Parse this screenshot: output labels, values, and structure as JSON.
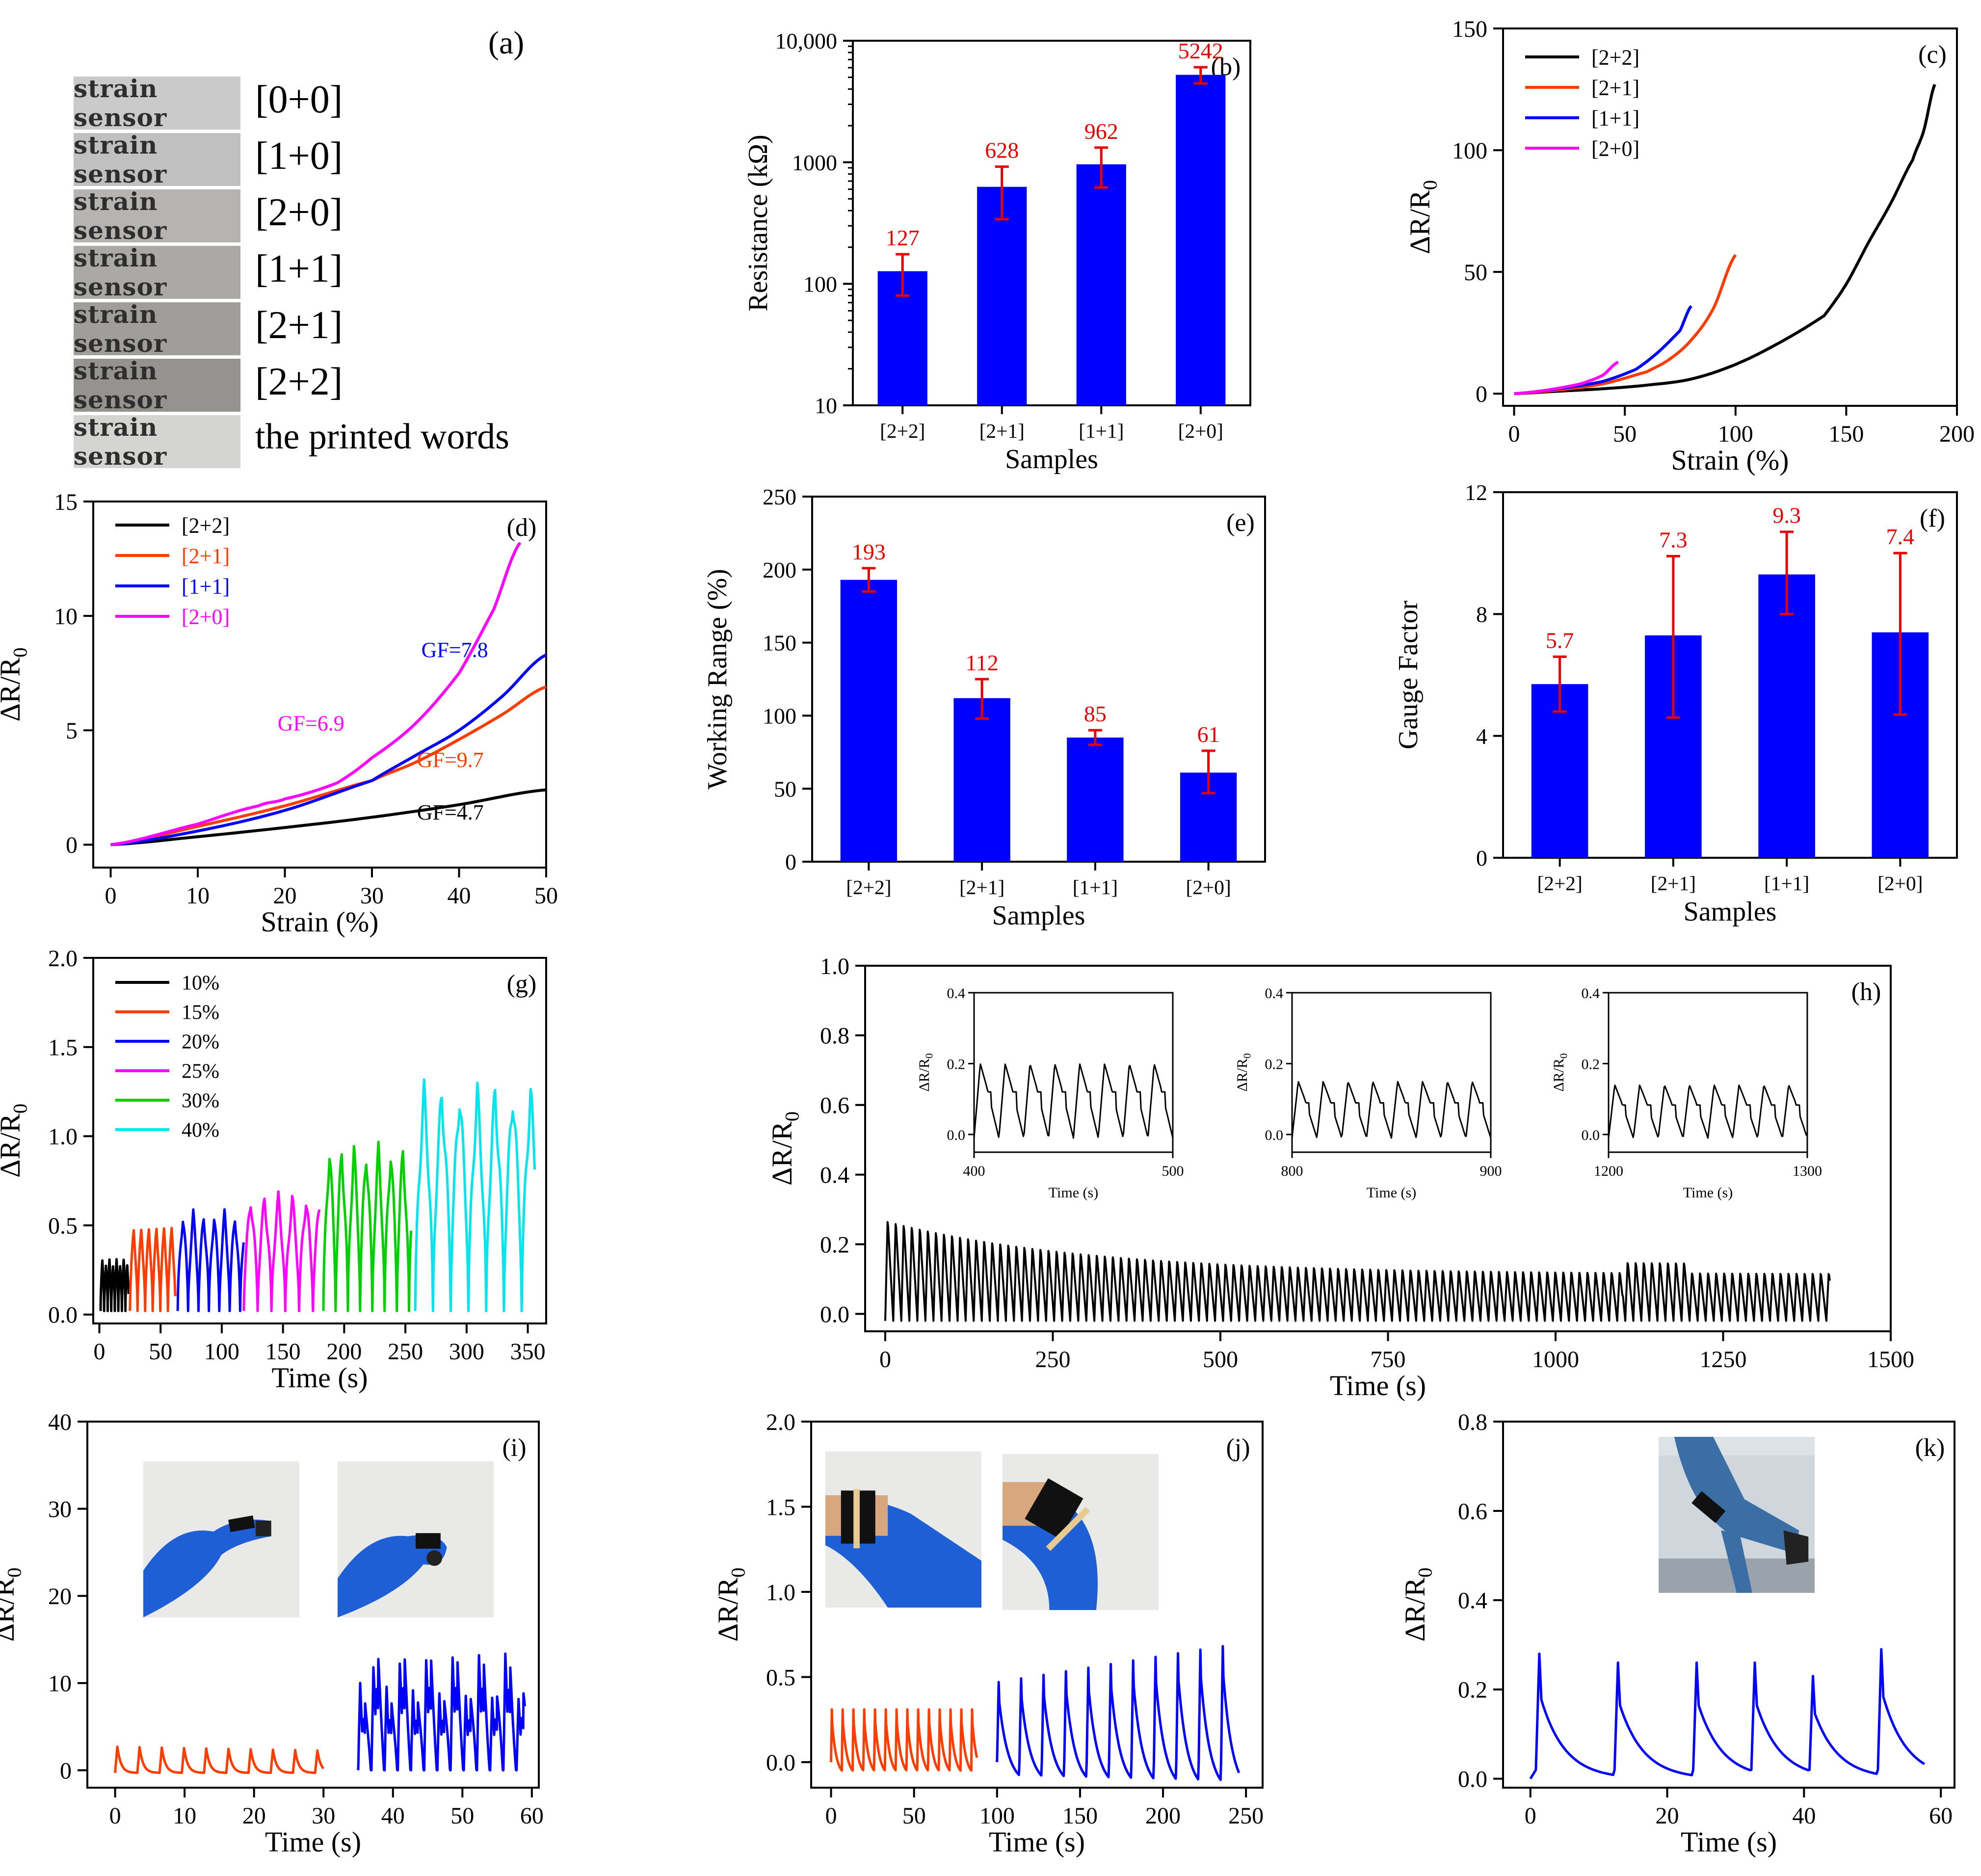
{
  "panel_a": {
    "letter": "(a)",
    "strip_text": "strain sensor",
    "labels": [
      "[0+0]",
      "[1+0]",
      "[2+0]",
      "[1+1]",
      "[2+1]",
      "[2+2]",
      "the printed words"
    ]
  },
  "photo_descriptions": {
    "i": [
      "gloved finger straight with sensor",
      "gloved finger bent with sensor"
    ],
    "j": [
      "gloved wrist straight with sensor",
      "gloved wrist bent with sensor"
    ],
    "k": [
      "leg with knee bent wearing sensor"
    ]
  },
  "colors": {
    "blue": "#0000ff",
    "red": "#e60000",
    "black": "#000000",
    "orange": "#ff3c00",
    "magenta": "#ff00ff",
    "green": "#00d000",
    "cyan": "#00e5ee"
  },
  "chart_data": [
    {
      "id": "b",
      "type": "bar",
      "letter": "(b)",
      "ylabel": "Resistance (kΩ)",
      "xlabel": "Samples",
      "yscale": "log",
      "ylim": [
        10,
        10000
      ],
      "yticks": [
        10,
        100,
        1000,
        10000
      ],
      "ytick_labels": [
        "10",
        "100",
        "1000",
        "10,000"
      ],
      "categories": [
        "[2+2]",
        "[2+1]",
        "[1+1]",
        "[2+0]"
      ],
      "values": [
        127,
        628,
        962,
        5242
      ],
      "err_low": [
        80,
        340,
        620,
        4450
      ],
      "err_high": [
        175,
        920,
        1320,
        6050
      ],
      "value_labels": [
        "127",
        "628",
        "962",
        "5242"
      ]
    },
    {
      "id": "c",
      "type": "line",
      "letter": "(c)",
      "ylabel": "ΔR/R0",
      "xlabel": "Strain (%)",
      "xlim": [
        -5,
        200
      ],
      "ylim": [
        -5,
        150
      ],
      "xticks": [
        0,
        50,
        100,
        150,
        200
      ],
      "yticks": [
        0,
        50,
        100,
        150
      ],
      "legend_position": "top-left",
      "series": [
        {
          "name": "[2+2]",
          "color": "#000000",
          "x": [
            0,
            20,
            40,
            60,
            80,
            100,
            120,
            140,
            150,
            160,
            170,
            180,
            185,
            190
          ],
          "y": [
            0,
            1,
            2,
            3.5,
            6,
            12,
            21,
            32,
            45,
            62,
            78,
            96,
            108,
            127
          ]
        },
        {
          "name": "[2+1]",
          "color": "#ff3c00",
          "x": [
            0,
            20,
            40,
            60,
            70,
            80,
            90,
            100
          ],
          "y": [
            0,
            1.5,
            4,
            9,
            14,
            22,
            35,
            57
          ]
        },
        {
          "name": "[1+1]",
          "color": "#0000ff",
          "x": [
            0,
            20,
            40,
            55,
            65,
            75,
            80
          ],
          "y": [
            0,
            2,
            5,
            10,
            17,
            26,
            36
          ]
        },
        {
          "name": "[2+0]",
          "color": "#ff00ff",
          "x": [
            0,
            15,
            30,
            40,
            47
          ],
          "y": [
            0,
            1.5,
            4,
            7.5,
            13
          ]
        }
      ]
    },
    {
      "id": "d",
      "type": "line",
      "letter": "(d)",
      "ylabel": "ΔR/R0",
      "xlabel": "Strain (%)",
      "xlim": [
        -2,
        50
      ],
      "ylim": [
        -1,
        15
      ],
      "xticks": [
        0,
        10,
        20,
        30,
        40,
        50
      ],
      "yticks": [
        0,
        5,
        10,
        15
      ],
      "legend_position": "top-left",
      "series": [
        {
          "name": "[2+2]",
          "color": "#000000",
          "x": [
            0,
            10,
            20,
            30,
            40,
            50
          ],
          "y": [
            0,
            0.35,
            0.75,
            1.2,
            1.75,
            2.4
          ]
        },
        {
          "name": "[2+1]",
          "color": "#ff3c00",
          "x": [
            0,
            10,
            20,
            30,
            35,
            40,
            45,
            50
          ],
          "y": [
            0,
            0.8,
            1.7,
            2.8,
            3.6,
            4.6,
            5.7,
            6.9
          ]
        },
        {
          "name": "[1+1]",
          "color": "#0000ff",
          "x": [
            0,
            10,
            20,
            30,
            35,
            40,
            45,
            50
          ],
          "y": [
            0,
            0.6,
            1.5,
            2.8,
            3.9,
            5.0,
            6.5,
            8.3
          ]
        },
        {
          "name": "[2+0]",
          "color": "#ff00ff",
          "x": [
            0,
            10,
            17,
            20,
            26,
            30,
            35,
            40,
            44,
            47
          ],
          "y": [
            0,
            0.9,
            1.7,
            2.0,
            2.7,
            3.8,
            5.3,
            7.5,
            10.3,
            13.2
          ]
        }
      ],
      "annotations": [
        {
          "text": "GF=7.8",
          "x": 39.5,
          "y": 8.2,
          "color": "#0000ff"
        },
        {
          "text": "GF=6.9",
          "x": 23,
          "y": 5.0,
          "color": "#ff00ff"
        },
        {
          "text": "GF=9.7",
          "x": 39,
          "y": 3.4,
          "color": "#ff3c00"
        },
        {
          "text": "GF=4.7",
          "x": 39,
          "y": 1.1,
          "color": "#000000"
        }
      ]
    },
    {
      "id": "e",
      "type": "bar",
      "letter": "(e)",
      "ylabel": "Working Range (%)",
      "xlabel": "Samples",
      "ylim": [
        0,
        250
      ],
      "yticks": [
        0,
        50,
        100,
        150,
        200,
        250
      ],
      "categories": [
        "[2+2]",
        "[2+1]",
        "[1+1]",
        "[2+0]"
      ],
      "values": [
        193,
        112,
        85,
        61
      ],
      "err_low": [
        185,
        98,
        80,
        47
      ],
      "err_high": [
        201,
        125,
        90,
        76
      ],
      "value_labels": [
        "193",
        "112",
        "85",
        "61"
      ]
    },
    {
      "id": "f",
      "type": "bar",
      "letter": "(f)",
      "ylabel": "Gauge Factor",
      "xlabel": "Samples",
      "ylim": [
        0,
        12
      ],
      "yticks": [
        0,
        4,
        8,
        12
      ],
      "categories": [
        "[2+2]",
        "[2+1]",
        "[1+1]",
        "[2+0]"
      ],
      "values": [
        5.7,
        7.3,
        9.3,
        7.4
      ],
      "err_low": [
        4.8,
        4.6,
        8.0,
        4.7
      ],
      "err_high": [
        6.6,
        9.9,
        10.7,
        10.0
      ],
      "value_labels": [
        "5.7",
        "7.3",
        "9.3",
        "7.4"
      ]
    },
    {
      "id": "g",
      "type": "line",
      "letter": "(g)",
      "ylabel": "ΔR/R0",
      "xlabel": "Time (s)",
      "xlim": [
        -5,
        365
      ],
      "ylim": [
        -0.05,
        2.0
      ],
      "xticks": [
        0,
        50,
        100,
        150,
        200,
        250,
        300,
        350
      ],
      "yticks": [
        0.0,
        0.5,
        1.0,
        1.5,
        2.0
      ],
      "ytick_labels": [
        "0.0",
        "0.5",
        "1.0",
        "1.5",
        "2.0"
      ],
      "legend_position": "top-left",
      "series": [
        {
          "name": "10%",
          "color": "#000000",
          "t_start": 1,
          "t_end": 24,
          "period": 2.9,
          "amp": 0.29
        },
        {
          "name": "15%",
          "color": "#ff3c00",
          "t_start": 25,
          "t_end": 62,
          "period": 6.2,
          "amp": 0.48
        },
        {
          "name": "20%",
          "color": "#0000ff",
          "t_start": 64,
          "t_end": 118,
          "period": 8.5,
          "amp": 0.57
        },
        {
          "name": "25%",
          "color": "#ff00ff",
          "t_start": 118,
          "t_end": 180,
          "period": 11.3,
          "amp": 0.67
        },
        {
          "name": "30%",
          "color": "#00d000",
          "t_start": 183,
          "t_end": 255,
          "period": 10.0,
          "amp": 0.95
        },
        {
          "name": "40%",
          "color": "#00e5ee",
          "t_start": 258,
          "t_end": 356,
          "period": 14.5,
          "amp": 1.3
        }
      ]
    },
    {
      "id": "h",
      "type": "line",
      "letter": "(h)",
      "ylabel": "ΔR/R0",
      "xlabel": "Time (s)",
      "xlim": [
        -30,
        1500
      ],
      "ylim": [
        -0.05,
        1.0
      ],
      "xticks": [
        0,
        250,
        500,
        750,
        1000,
        1250,
        1500
      ],
      "yticks": [
        0.0,
        0.2,
        0.4,
        0.6,
        0.8,
        1.0
      ],
      "ytick_labels": [
        "0.0",
        "0.2",
        "0.4",
        "0.6",
        "0.8",
        "1.0"
      ],
      "cycle_period": 12,
      "t_end": 1410,
      "insets": [
        {
          "xlim": [
            400,
            500
          ],
          "ylim": [
            -0.05,
            0.4
          ],
          "xticks": [
            400,
            500
          ],
          "yticks": [
            0.0,
            0.2,
            0.4
          ],
          "ytick_labels": [
            "0.0",
            "0.2",
            "0.4"
          ],
          "xlabel": "Time (s)",
          "ylabel": "ΔR/R0",
          "amp": 0.21
        },
        {
          "xlim": [
            800,
            900
          ],
          "ylim": [
            -0.05,
            0.4
          ],
          "xticks": [
            800,
            900
          ],
          "yticks": [
            0.0,
            0.2,
            0.4
          ],
          "ytick_labels": [
            "0.0",
            "0.2",
            "0.4"
          ],
          "xlabel": "Time (s)",
          "ylabel": "ΔR/R0",
          "amp": 0.16
        },
        {
          "xlim": [
            1200,
            1300
          ],
          "ylim": [
            -0.05,
            0.4
          ],
          "xticks": [
            1200,
            1300
          ],
          "yticks": [
            0.0,
            0.2,
            0.4
          ],
          "ytick_labels": [
            "0.0",
            "0.2",
            "0.4"
          ],
          "xlabel": "Time (s)",
          "ylabel": "ΔR/R0",
          "amp": 0.15
        }
      ]
    },
    {
      "id": "i",
      "type": "line",
      "letter": "(i)",
      "ylabel": "ΔR/R0",
      "xlabel": "Time (s)",
      "xlim": [
        -4,
        61
      ],
      "ylim": [
        -2,
        40
      ],
      "xticks": [
        0,
        10,
        20,
        30,
        40,
        50,
        60
      ],
      "yticks": [
        0,
        10,
        20,
        30,
        40
      ],
      "series": [
        {
          "color": "#ff3c00",
          "t_start": 0,
          "t_end": 30,
          "period": 3.2,
          "amp": 3.0
        },
        {
          "color": "#0000ff",
          "t_start": 35,
          "t_end": 59,
          "period": 1.9,
          "amp": 13.5
        }
      ]
    },
    {
      "id": "j",
      "type": "line",
      "letter": "(j)",
      "ylabel": "ΔR/R0",
      "xlabel": "Time (s)",
      "xlim": [
        -12,
        260
      ],
      "ylim": [
        -0.15,
        2.0
      ],
      "xticks": [
        0,
        50,
        100,
        150,
        200,
        250
      ],
      "yticks": [
        0.0,
        0.5,
        1.0,
        1.5,
        2.0
      ],
      "ytick_labels": [
        "0.0",
        "0.5",
        "1.0",
        "1.5",
        "2.0"
      ],
      "series": [
        {
          "color": "#ff3c00",
          "t_start": 0,
          "t_end": 88,
          "period": 6.5,
          "amp": 0.33
        },
        {
          "color": "#0000ff",
          "t_start": 100,
          "t_end": 246,
          "period": 13.5,
          "amp": 0.5
        }
      ]
    },
    {
      "id": "k",
      "type": "line",
      "letter": "(k)",
      "ylabel": "ΔR/R0",
      "xlabel": "Time (s)",
      "xlim": [
        -4,
        62
      ],
      "ylim": [
        -0.02,
        0.8
      ],
      "xticks": [
        0,
        20,
        40,
        60
      ],
      "yticks": [
        0.0,
        0.2,
        0.4,
        0.6,
        0.8
      ],
      "ytick_labels": [
        "0.0",
        "0.2",
        "0.4",
        "0.6",
        "0.8"
      ],
      "peaks": [
        1,
        12.5,
        24,
        32.5,
        41,
        51
      ],
      "peak_values": [
        0.28,
        0.26,
        0.26,
        0.26,
        0.23,
        0.29
      ],
      "t_end": 58
    }
  ]
}
